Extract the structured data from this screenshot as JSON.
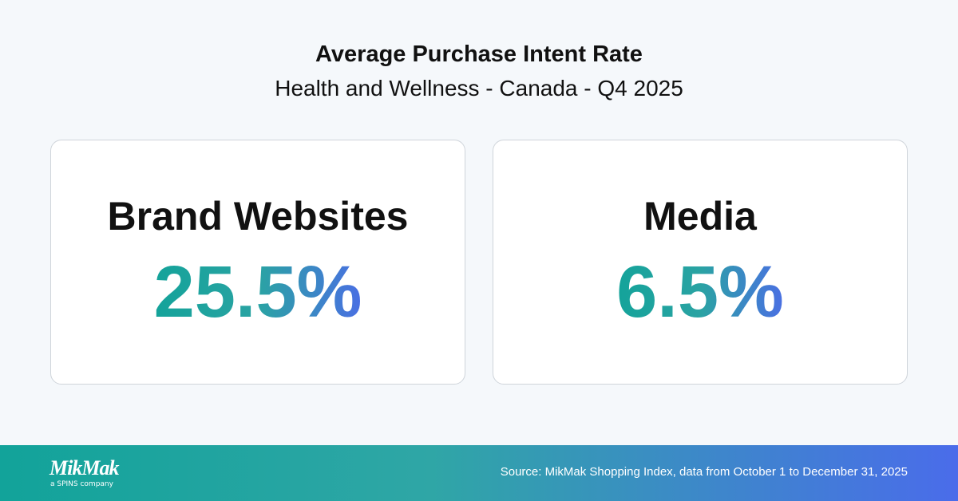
{
  "header": {
    "title": "Average Purchase Intent Rate",
    "subtitle": "Health and Wellness - Canada - Q4 2025"
  },
  "cards": [
    {
      "label": "Brand Websites",
      "value": "25.5%"
    },
    {
      "label": "Media",
      "value": "6.5%"
    }
  ],
  "footer": {
    "logo": "MikMak",
    "tagline": "a SPINS company",
    "source": "Source: MikMak Shopping Index, data from October 1 to December 31, 2025"
  }
}
